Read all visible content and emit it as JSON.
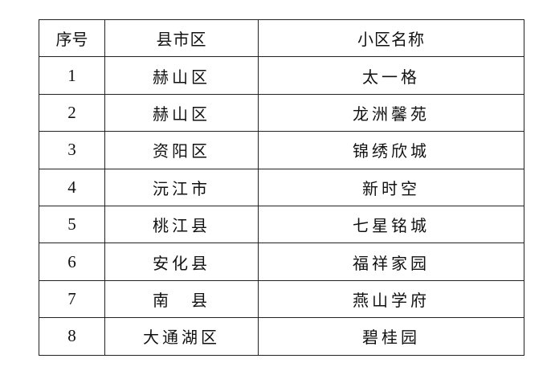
{
  "table": {
    "headers": [
      "序号",
      "县市区",
      "小区名称"
    ],
    "rows": [
      {
        "no": "1",
        "district": "赫山区",
        "community": "太一格"
      },
      {
        "no": "2",
        "district": "赫山区",
        "community": "龙洲馨苑"
      },
      {
        "no": "3",
        "district": "资阳区",
        "community": "锦绣欣城"
      },
      {
        "no": "4",
        "district": "沅江市",
        "community": "新时空"
      },
      {
        "no": "5",
        "district": "桃江县",
        "community": "七星铭城"
      },
      {
        "no": "6",
        "district": "安化县",
        "community": "福祥家园"
      },
      {
        "no": "7",
        "district": "南　县",
        "community": "燕山学府"
      },
      {
        "no": "8",
        "district": "大通湖区",
        "community": "碧桂园"
      }
    ]
  }
}
